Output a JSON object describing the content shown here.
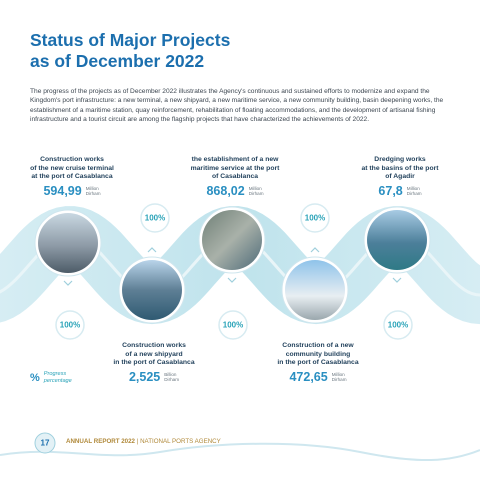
{
  "header": {
    "title_lines": [
      "Status of Major Projects",
      "as of December 2022"
    ]
  },
  "intro": "The progress of the projects as of December 2022 illustrates the Agency's continuous and sustained efforts to modernize and expand the Kingdom's port infrastructure: a new terminal, a new shipyard, a new maritime service, a new community building, basin deepening works, the establishment of a maritime station, quay reinforcement, rehabilitation of floating accommodations, and the development of artisanal fishing infrastructure and a tourist circuit are among the flagship projects that have characterized the achievements of 2022.",
  "projects": [
    {
      "label_lines": [
        "Construction works",
        "of the new cruise terminal",
        "at the port of Casablanca"
      ],
      "amount": "594,99",
      "unit_lines": [
        "Million",
        "Dirham"
      ],
      "progress": "100%"
    },
    {
      "label_lines": [
        "Construction works",
        "of a new shipyard",
        "in the port of Casablanca"
      ],
      "amount": "2,525",
      "unit_lines": [
        "Billion",
        "Dirham"
      ],
      "progress": "100%"
    },
    {
      "label_lines": [
        "the establishment of a new",
        "maritime service at the port",
        "of Casablanca"
      ],
      "amount": "868,02",
      "unit_lines": [
        "Million",
        "Dirham"
      ],
      "progress": "100%"
    },
    {
      "label_lines": [
        "Construction of a new",
        "community building",
        "in the port of Casablanca"
      ],
      "amount": "472,65",
      "unit_lines": [
        "Million",
        "Dirham"
      ],
      "progress": "100%"
    },
    {
      "label_lines": [
        "Dredging works",
        "at the basins of the port",
        "of Agadir"
      ],
      "amount": "67,8",
      "unit_lines": [
        "Million",
        "Dirham"
      ],
      "progress": "100%"
    }
  ],
  "legend": {
    "symbol": "%",
    "label_lines": [
      "Progress",
      "percentage"
    ]
  },
  "footer": {
    "page": "17",
    "report": "ANNUAL REPORT 2022",
    "separator": "|",
    "agency": "NATIONAL PORTS AGENCY"
  }
}
